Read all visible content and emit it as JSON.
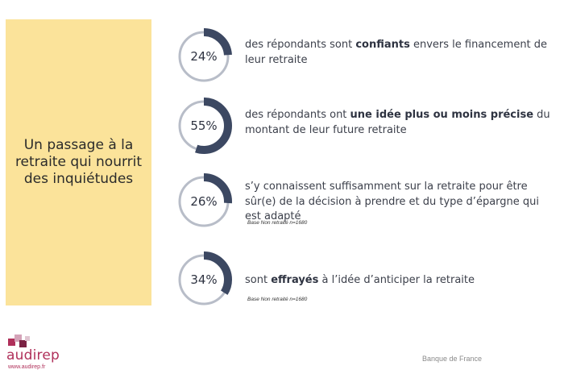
{
  "panel": {
    "title": "Un passage à la retraite qui nourrit des inquiétudes"
  },
  "colors": {
    "panel_bg": "#fbe39a",
    "ring_fill": "#3c4862",
    "ring_track": "#b8bdc8",
    "brand": "#b0305a"
  },
  "stats": [
    {
      "percent_label": "24%",
      "fraction": 0.24,
      "text_before": "des répondants sont ",
      "text_bold": "confiants",
      "text_after": " envers le financement de leur retraite",
      "base_note": ""
    },
    {
      "percent_label": "55%",
      "fraction": 0.55,
      "text_before": "des répondants ont ",
      "text_bold": "une idée plus ou moins précise",
      "text_after": " du montant de leur future retraite",
      "base_note": ""
    },
    {
      "percent_label": "26%",
      "fraction": 0.26,
      "text_before": "s’y connaissent suffisamment sur la retraite pour être sûr(e) de la décision à prendre et du type d’épargne qui est adapté",
      "text_bold": "",
      "text_after": "",
      "base_note": "Base Non retraité n=1680"
    },
    {
      "percent_label": "34%",
      "fraction": 0.34,
      "text_before": "sont ",
      "text_bold": "effrayés",
      "text_after": " à l’idée d’anticiper la retraite",
      "base_note": "Base Non retraité n=1680"
    }
  ],
  "logo": {
    "name": "audirep",
    "url": "www.audirep.fr"
  },
  "footer": {
    "source": "Banque de France"
  }
}
